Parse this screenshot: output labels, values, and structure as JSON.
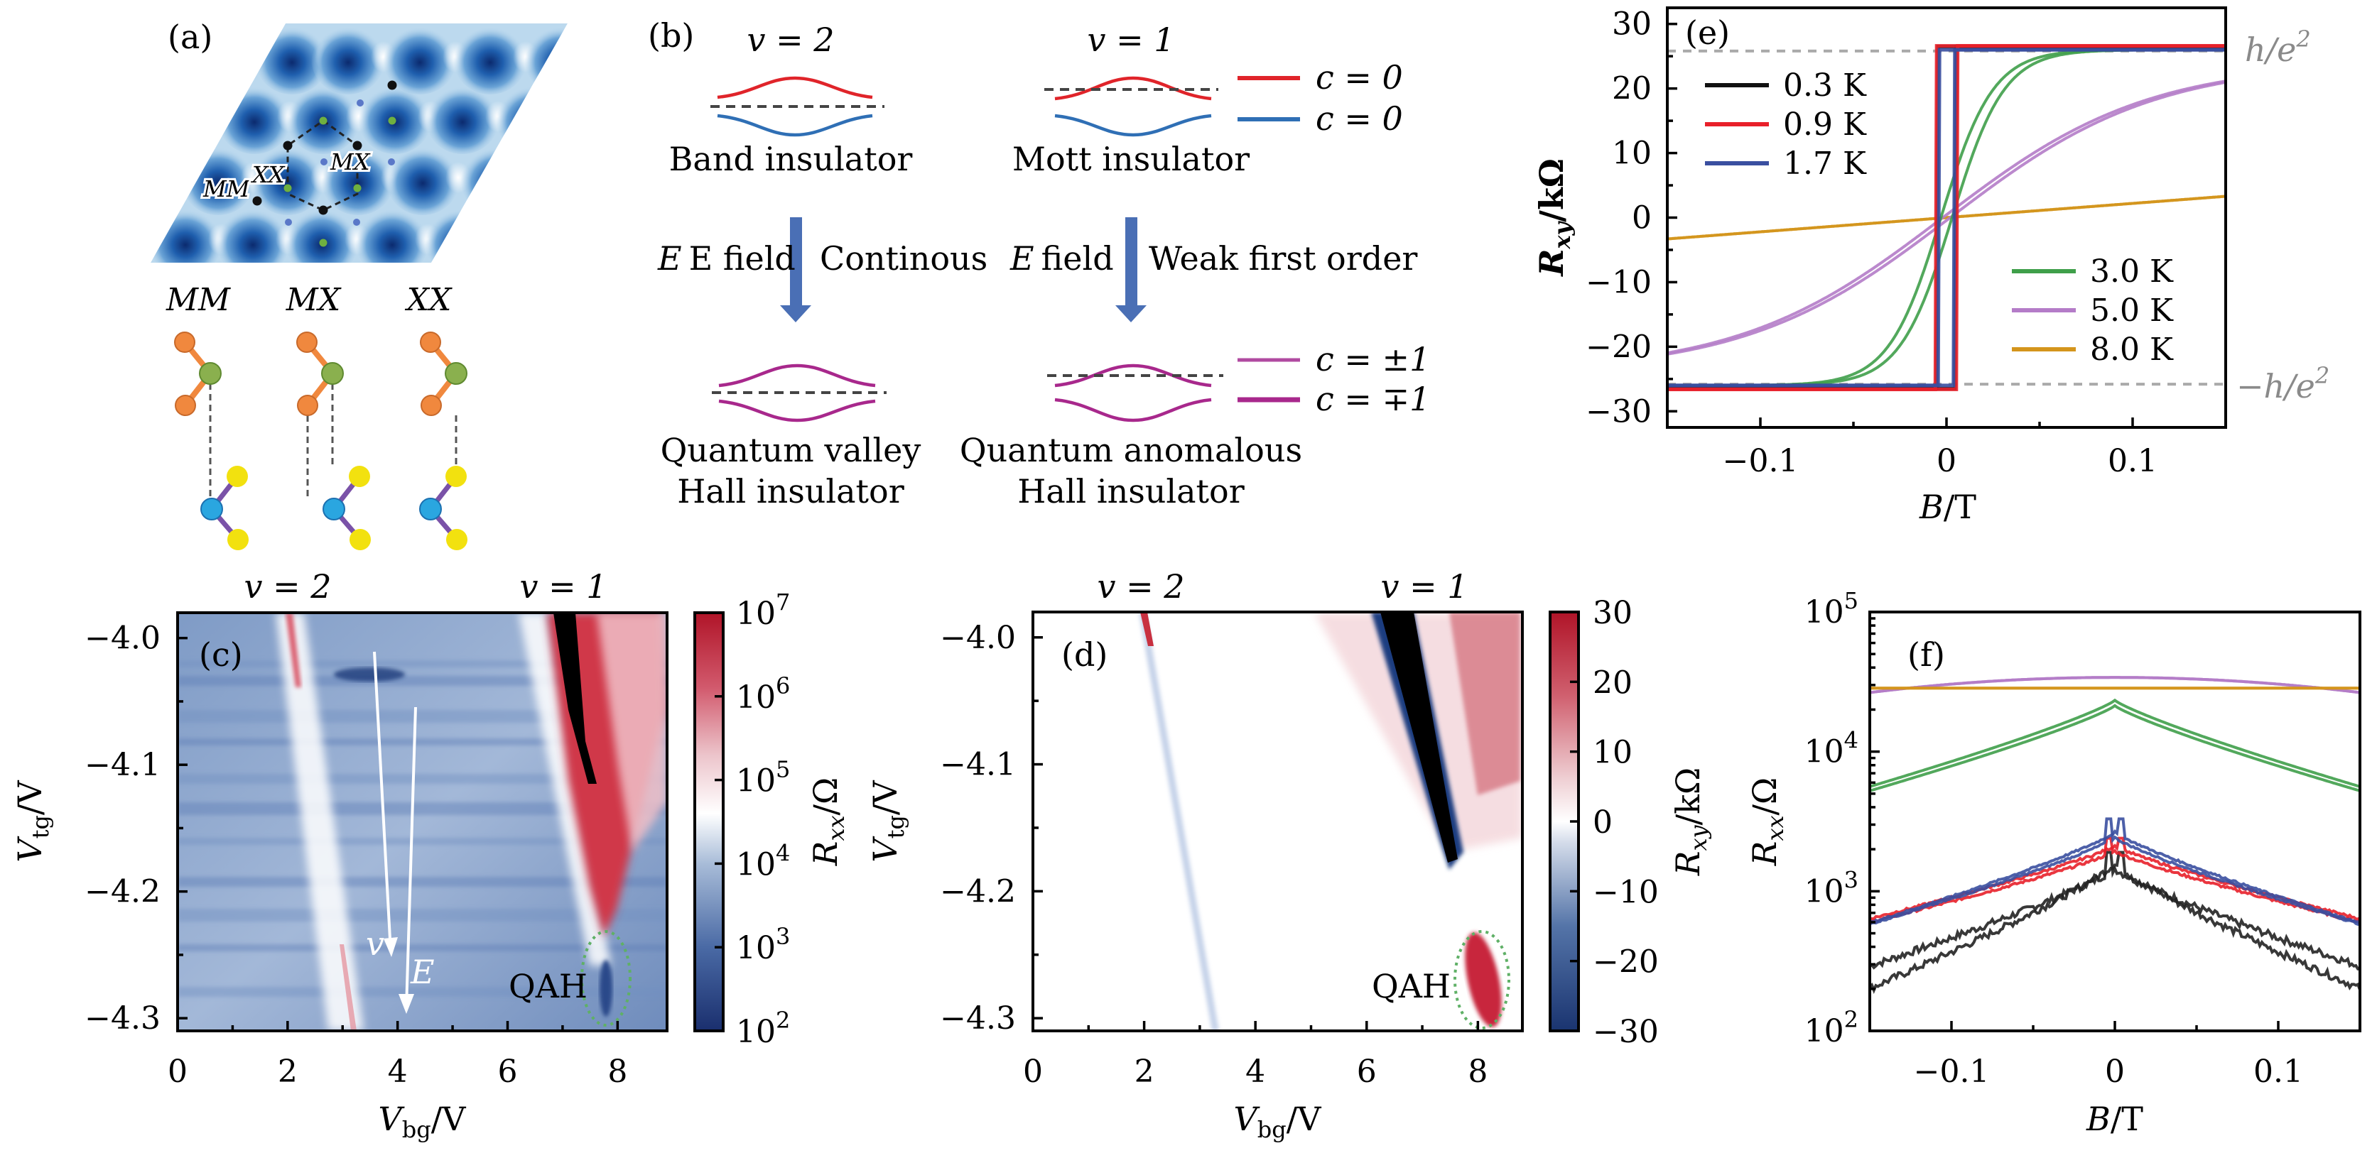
{
  "figure": {
    "panel_a": {
      "label": "(a)",
      "map_labels": [
        "MM",
        "XX",
        "MX"
      ],
      "stacking_labels": [
        "MM",
        "MX",
        "XX"
      ],
      "colors": {
        "top_outer": "#f0883e",
        "top_center": "#8ab04e",
        "bottom_center": "#2aa6e0",
        "bottom_outer": "#f2e10f",
        "bond_top": "#f0883e",
        "bond_bottom": "#7a52a8",
        "moire_dark": "#0e3a7e",
        "moire_light": "#c8e0f0"
      }
    },
    "panel_b": {
      "label": "(b)",
      "fill_labels": [
        "v = 2",
        "v = 1"
      ],
      "top_states": [
        "Band insulator",
        "Mott insulator"
      ],
      "field_labels": [
        "E field",
        "E field"
      ],
      "transition_labels": [
        "Continous",
        "Weak first order"
      ],
      "bottom_states_line1": [
        "Quantum valley",
        "Quantum anomalous"
      ],
      "bottom_states_line2": [
        "Hall insulator",
        "Hall insulator"
      ],
      "legend_top": [
        {
          "label": "c = 0",
          "color": "#e0242a"
        },
        {
          "label": "c = 0",
          "color": "#2f6fb5"
        }
      ],
      "legend_bottom": [
        {
          "label": "c = ±1",
          "color": "#a8288c"
        },
        {
          "label": "c = ∓1",
          "color": "#a8288c"
        }
      ],
      "arrow_color": "#4a6fb5"
    }
  },
  "chart_data": [
    {
      "panel": "(c)",
      "type": "heatmap",
      "title": "",
      "top_labels": [
        {
          "text": "v = 2",
          "x": 2.0
        },
        {
          "text": "v = 1",
          "x": 7.3
        }
      ],
      "xlabel": "V_bg/V",
      "ylabel": "V_tg/V",
      "xlim": [
        0,
        8.9
      ],
      "ylim": [
        -4.31,
        -3.98
      ],
      "xticks": [
        "0",
        "2",
        "4",
        "6",
        "8"
      ],
      "xtick_values": [
        0,
        2,
        4,
        6,
        8
      ],
      "yticks": [
        "-4.0",
        "-4.1",
        "-4.2",
        "-4.3"
      ],
      "ytick_values": [
        -4.0,
        -4.1,
        -4.2,
        -4.3
      ],
      "colorbar": {
        "label": "R_xx/Ω",
        "scale": "log",
        "ticks": [
          "10^7",
          "10^6",
          "10^5",
          "10^4",
          "10^3",
          "10^2"
        ],
        "range": [
          100,
          10000000
        ]
      },
      "annotations": [
        {
          "text": "QAH",
          "x": 7.0,
          "y": -4.27
        },
        {
          "text": "v",
          "x": 4.0,
          "y": -4.26
        },
        {
          "text": "E",
          "x": 5.1,
          "y": -4.28
        }
      ],
      "features": [
        {
          "name": "v2-line",
          "x_top": 2.0,
          "x_bottom": 3.3
        },
        {
          "name": "v1-insulating",
          "x_top": 7.2,
          "x_bottom": 8.2
        }
      ]
    },
    {
      "panel": "(d)",
      "type": "heatmap",
      "top_labels": [
        {
          "text": "v = 2",
          "x": 2.0
        },
        {
          "text": "v = 1",
          "x": 7.3
        }
      ],
      "xlabel": "V_bg/V",
      "ylabel": "V_tg/V",
      "xlim": [
        0,
        8.8
      ],
      "ylim": [
        -4.31,
        -3.98
      ],
      "xticks": [
        "0",
        "2",
        "4",
        "6",
        "8"
      ],
      "xtick_values": [
        0,
        2,
        4,
        6,
        8
      ],
      "yticks": [
        "-4.0",
        "-4.1",
        "-4.2",
        "-4.3"
      ],
      "ytick_values": [
        -4.0,
        -4.1,
        -4.2,
        -4.3
      ],
      "colorbar": {
        "label": "R_xy/kΩ",
        "scale": "linear",
        "ticks": [
          "30",
          "20",
          "10",
          "0",
          "-10",
          "-20",
          "-30"
        ],
        "range": [
          -30,
          30
        ]
      },
      "annotations": [
        {
          "text": "QAH",
          "x": 7.0,
          "y": -4.27
        }
      ]
    },
    {
      "panel": "(e)",
      "type": "line",
      "xlabel": "B/T",
      "ylabel": "R_xy/kΩ",
      "xlim": [
        -0.15,
        0.15
      ],
      "ylim": [
        -32.5,
        32.5
      ],
      "xticks": [
        "-0.1",
        "0",
        "0.1"
      ],
      "xtick_values": [
        -0.1,
        0,
        0.1
      ],
      "yticks": [
        "30",
        "20",
        "10",
        "0",
        "-10",
        "-20",
        "-30"
      ],
      "ytick_values": [
        30,
        20,
        10,
        0,
        -10,
        -20,
        -30
      ],
      "reference_lines": [
        {
          "label": "h/e^2",
          "y": 25.8
        },
        {
          "label": "-h/e^2",
          "y": -25.8
        }
      ],
      "legend_left": [
        "0.3 K",
        "0.9 K",
        "1.7 K"
      ],
      "legend_right": [
        "3.0 K",
        "5.0 K",
        "8.0 K"
      ],
      "series": [
        {
          "name": "0.3 K",
          "color": "#111111",
          "kind": "square",
          "sat": 26.5,
          "coercive": 0.005
        },
        {
          "name": "0.9 K",
          "color": "#e8202a",
          "kind": "square",
          "sat": 26.6,
          "coercive": 0.006
        },
        {
          "name": "1.7 K",
          "color": "#3a4fa0",
          "kind": "square",
          "sat": 26.0,
          "coercive": 0.004
        },
        {
          "name": "3.0 K",
          "color": "#3f9f4a",
          "kind": "tanh",
          "sat": 26.0,
          "width": 0.028,
          "coercive": 0.003
        },
        {
          "name": "5.0 K",
          "color": "#b47cc8",
          "kind": "tanh",
          "sat": 24.0,
          "width": 0.11,
          "coercive": 0.002
        },
        {
          "name": "8.0 K",
          "color": "#d4951c",
          "kind": "linear",
          "slope": 22.0,
          "coercive": 0.0
        }
      ]
    },
    {
      "panel": "(f)",
      "type": "line",
      "xlabel": "B/T",
      "ylabel": "R_xx/Ω",
      "xlim": [
        -0.15,
        0.15
      ],
      "ylim": [
        100,
        100000
      ],
      "yscale": "log",
      "xticks": [
        "-0.1",
        "0",
        "0.1"
      ],
      "xtick_values": [
        -0.1,
        0,
        0.1
      ],
      "yticks": [
        "10^5",
        "10^4",
        "10^3",
        "10^2"
      ],
      "ytick_values": [
        100000,
        10000,
        1000,
        100
      ],
      "series": [
        {
          "name": "0.3 K",
          "color": "#222222",
          "center": 1500,
          "edge": 300,
          "edge2": 190,
          "peak": 1900,
          "noise": 0.06
        },
        {
          "name": "0.9 K",
          "color": "#e8202a",
          "center": 2000,
          "edge": 620,
          "edge2": 600,
          "peak": 2400,
          "noise": 0.02
        },
        {
          "name": "1.7 K",
          "color": "#3a4fa0",
          "center": 2500,
          "edge": 600,
          "edge2": 560,
          "peak": 3300,
          "noise": 0.015
        },
        {
          "name": "3.0 K",
          "color": "#3f9f4a",
          "center": 22000,
          "edge": 5400,
          "edge2": 5300,
          "peak": 22000,
          "noise": 0.0
        },
        {
          "name": "5.0 K",
          "color": "#b47cc8",
          "center": 34000,
          "edge": 26500,
          "edge2": 26500,
          "peak": 34000,
          "noise": 0.0,
          "shape": "parabola"
        },
        {
          "name": "8.0 K",
          "color": "#d4951c",
          "center": 28500,
          "edge": 28500,
          "edge2": 28500,
          "peak": 28500,
          "noise": 0.0,
          "shape": "flat"
        }
      ]
    }
  ]
}
